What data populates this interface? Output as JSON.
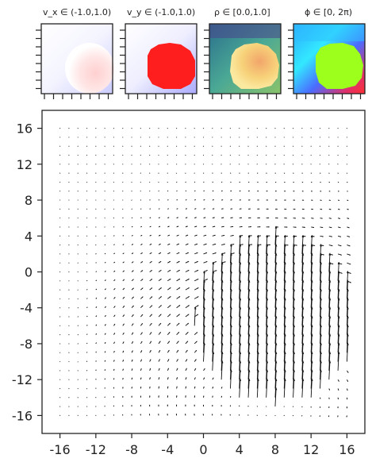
{
  "panels": [
    {
      "title": "v_x ∈ (-1.0,1.0)",
      "cmap": "bwr",
      "range": [
        -1.0,
        1.0
      ]
    },
    {
      "title": "v_y ∈ (-1.0,1.0)",
      "cmap": "bwr",
      "range": [
        -1.0,
        1.0
      ]
    },
    {
      "title": "ρ ∈ [0.0,1.0]",
      "cmap": "viridis-like",
      "range": [
        0.0,
        1.0
      ]
    },
    {
      "title": "ϕ ∈ [0, 2π)",
      "cmap": "hsv",
      "range": [
        0,
        6.283
      ]
    }
  ],
  "chart_data": {
    "type": "quiver",
    "title": "",
    "xlabel": "",
    "ylabel": "",
    "xlim": [
      -18,
      18
    ],
    "ylim": [
      -18,
      18
    ],
    "xticks": [
      -16,
      -12,
      -8,
      -4,
      0,
      4,
      8,
      12,
      16
    ],
    "xtick_labels": [
      "-16",
      "-12",
      "-8",
      "-4",
      "0",
      "4",
      "8",
      "12",
      "16"
    ],
    "yticks": [
      16,
      12,
      8,
      4,
      0,
      -4,
      -8,
      -12,
      -16
    ],
    "ytick_labels": [
      "16",
      "12",
      "8",
      "4",
      "0",
      "-4",
      "-8",
      "-12",
      "-16"
    ],
    "grid": false,
    "grid_spacing": 1,
    "field": {
      "droplet_center": [
        8,
        -6
      ],
      "droplet_radius": 9,
      "droplet_velocity": [
        0.05,
        1.0
      ],
      "droplet_top": 8,
      "background": "weak vortical flow, mostly pointing up-right near lower-left"
    }
  }
}
